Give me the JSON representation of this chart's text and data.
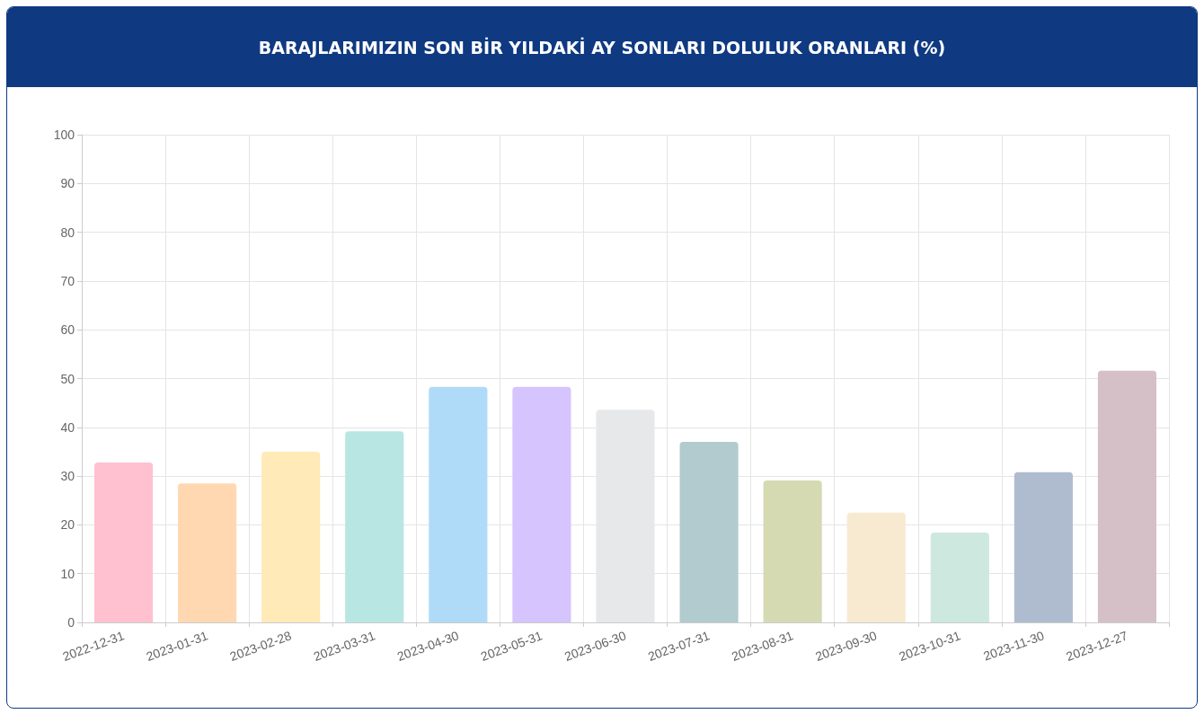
{
  "chart_data": {
    "type": "bar",
    "title": "BARAJLARIMIZIN SON BİR YILDAKİ AY SONLARI DOLULUK ORANLARI (%)",
    "categories": [
      "2022-12-31",
      "2023-01-31",
      "2023-02-28",
      "2023-03-31",
      "2023-04-30",
      "2023-05-31",
      "2023-06-30",
      "2023-07-31",
      "2023-08-31",
      "2023-09-30",
      "2023-10-31",
      "2023-11-30",
      "2023-12-27"
    ],
    "values": [
      32.8,
      28.5,
      35.0,
      39.2,
      48.3,
      48.3,
      43.6,
      37.0,
      29.1,
      22.5,
      18.4,
      30.8,
      51.6
    ],
    "colors": [
      "#ffc1cf",
      "#ffd8b1",
      "#ffeab8",
      "#b7e6e3",
      "#b0dbf8",
      "#d5c4fe",
      "#e7e8ea",
      "#b2cbcf",
      "#d5dab3",
      "#f7ead0",
      "#cde8df",
      "#afbccf",
      "#d6c0c7"
    ],
    "ylim": [
      0,
      100
    ],
    "yticks": [
      0,
      10,
      20,
      30,
      40,
      50,
      60,
      70,
      80,
      90,
      100
    ],
    "grid": true
  }
}
